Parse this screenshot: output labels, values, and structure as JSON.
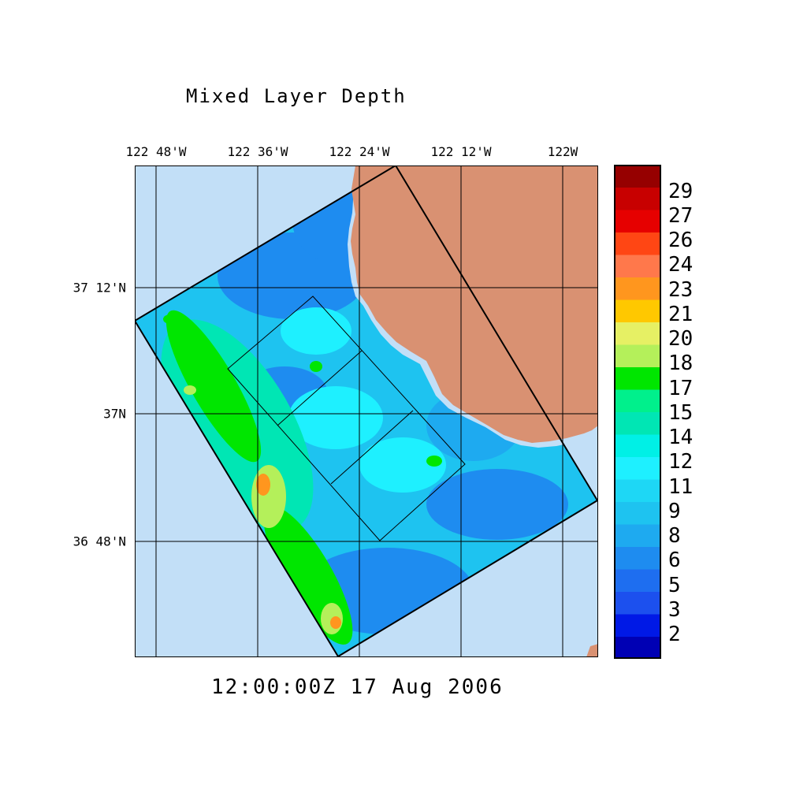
{
  "title": "Mixed Layer Depth",
  "timestamp": "12:00:00Z  17 Aug 2006",
  "longitude_labels": [
    "122 48'W",
    "122 36'W",
    "122 24'W",
    "122 12'W",
    "122W"
  ],
  "latitude_labels": [
    "37 12'N",
    "37N",
    "36 48'N"
  ],
  "colors": {
    "ocean_outside": "#c2dff7",
    "land": "#d99172",
    "grid": "#000000",
    "field_base": "#1ec3f0"
  },
  "colorbar": {
    "colors": [
      "#0000b4",
      "#0019e6",
      "#1c50ee",
      "#1e6ef0",
      "#1e8cf0",
      "#1eaaf0",
      "#1ec3f0",
      "#1ed7f5",
      "#1ef0ff",
      "#00f0e6",
      "#00e6b4",
      "#00f08c",
      "#00e600",
      "#b4f05a",
      "#e6f064",
      "#ffc800",
      "#ff961e",
      "#ff784b",
      "#ff4614",
      "#e60000",
      "#c80000",
      "#960000"
    ],
    "labels": [
      "2",
      "3",
      "5",
      "6",
      "8",
      "9",
      "11",
      "12",
      "14",
      "15",
      "17",
      "18",
      "20",
      "21",
      "23",
      "24",
      "26",
      "27",
      "29"
    ]
  }
}
